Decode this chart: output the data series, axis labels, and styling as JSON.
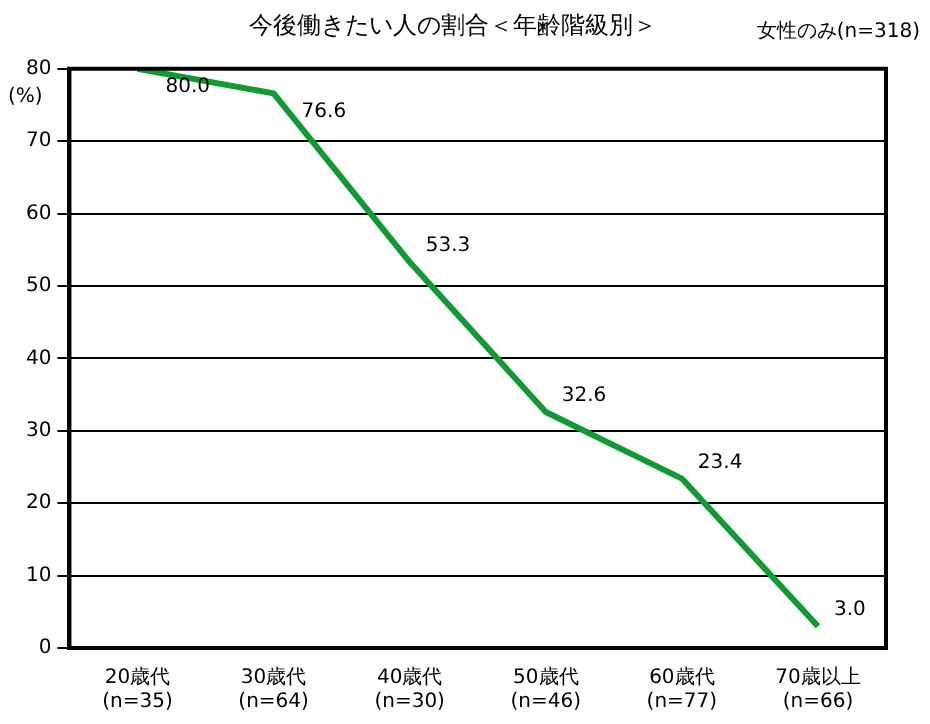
{
  "chart_data": {
    "type": "line",
    "title": "今後働きたい人の割合＜年齢階級別＞",
    "ylabel": "(%)",
    "annotations": [
      "女性のみ(n=318)"
    ],
    "categories": [
      "20歳代\n(n=35)",
      "30歳代\n(n=64)",
      "40歳代\n(n=30)",
      "50歳代\n(n=46)",
      "60歳代\n(n=77)",
      "70歳以上\n(n=66)"
    ],
    "series": [
      {
        "color": "#119933",
        "values": [
          80.0,
          76.6,
          53.3,
          32.6,
          23.4,
          3.0
        ],
        "value_labels": [
          "80.0",
          "76.6",
          "53.3",
          "32.6",
          "23.4",
          "3.0"
        ]
      }
    ],
    "ylim": [
      0,
      80
    ],
    "yticks": [
      0,
      10,
      20,
      30,
      40,
      50,
      60,
      70,
      80
    ],
    "grid": "y",
    "marker": "none",
    "line_style": "solid",
    "legend": false
  }
}
